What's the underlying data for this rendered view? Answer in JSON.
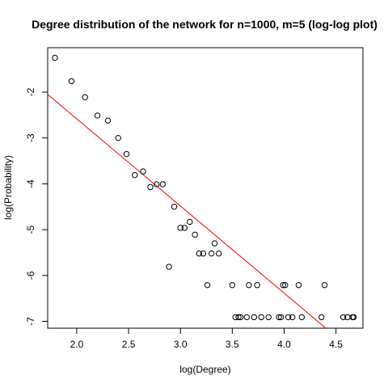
{
  "chart_data": {
    "type": "scatter",
    "title": "Degree distribution of the network for n=1000, m=5 (log-log plot)",
    "xlabel": "log(Degree)",
    "ylabel": "log(Probability)",
    "xlim": [
      1.72,
      4.76
    ],
    "ylim": [
      -7.15,
      -1.03
    ],
    "x_ticks": [
      "2.0",
      "2.5",
      "3.0",
      "3.5",
      "4.0",
      "4.5"
    ],
    "x_tick_values": [
      2.0,
      2.5,
      3.0,
      3.5,
      4.0,
      4.5
    ],
    "y_ticks": [
      "-2",
      "-3",
      "-4",
      "-5",
      "-6",
      "-7"
    ],
    "y_tick_values": [
      -2,
      -3,
      -4,
      -5,
      -6,
      -7
    ],
    "grid": false,
    "point_marker": "open-circle",
    "point_color": "#000000",
    "fit_line": {
      "color": "#ff0000",
      "points": [
        [
          1.72,
          -2.05
        ],
        [
          4.76,
          -7.83
        ]
      ]
    },
    "points": [
      [
        1.79,
        -1.25
      ],
      [
        1.95,
        -1.76
      ],
      [
        2.08,
        -2.11
      ],
      [
        2.2,
        -2.51
      ],
      [
        2.3,
        -2.62
      ],
      [
        2.4,
        -3.0
      ],
      [
        2.48,
        -3.35
      ],
      [
        2.56,
        -3.81
      ],
      [
        2.64,
        -3.73
      ],
      [
        2.71,
        -4.07
      ],
      [
        2.77,
        -4.01
      ],
      [
        2.83,
        -4.01
      ],
      [
        2.89,
        -5.81
      ],
      [
        2.94,
        -4.5
      ],
      [
        3.0,
        -4.96
      ],
      [
        3.04,
        -4.96
      ],
      [
        3.09,
        -4.83
      ],
      [
        3.14,
        -5.11
      ],
      [
        3.18,
        -5.52
      ],
      [
        3.22,
        -5.52
      ],
      [
        3.26,
        -6.21
      ],
      [
        3.3,
        -5.52
      ],
      [
        3.33,
        -5.3
      ],
      [
        3.37,
        -5.52
      ],
      [
        3.5,
        -6.21
      ],
      [
        3.53,
        -6.91
      ],
      [
        3.56,
        -6.91
      ],
      [
        3.58,
        -6.91
      ],
      [
        3.64,
        -6.91
      ],
      [
        3.66,
        -6.21
      ],
      [
        3.71,
        -6.91
      ],
      [
        3.74,
        -6.21
      ],
      [
        3.78,
        -6.91
      ],
      [
        3.85,
        -6.91
      ],
      [
        3.95,
        -6.91
      ],
      [
        3.97,
        -6.91
      ],
      [
        3.99,
        -6.21
      ],
      [
        4.01,
        -6.21
      ],
      [
        4.04,
        -6.91
      ],
      [
        4.08,
        -6.91
      ],
      [
        4.14,
        -6.21
      ],
      [
        4.17,
        -6.91
      ],
      [
        4.36,
        -6.91
      ],
      [
        4.39,
        -6.21
      ],
      [
        4.57,
        -6.91
      ],
      [
        4.61,
        -6.91
      ],
      [
        4.66,
        -6.91
      ],
      [
        4.67,
        -6.91
      ]
    ]
  }
}
